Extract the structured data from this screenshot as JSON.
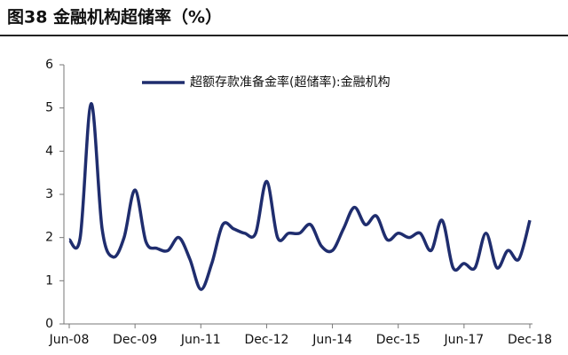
{
  "chart_data": {
    "type": "line",
    "title": "图38 金融机构超储率（%）",
    "categories": [
      "Jun-08",
      null,
      null,
      null,
      null,
      null,
      "Dec-09",
      null,
      null,
      null,
      null,
      null,
      "Jun-11",
      null,
      null,
      null,
      null,
      null,
      "Dec-12",
      null,
      null,
      null,
      null,
      null,
      "Jun-14",
      null,
      null,
      null,
      null,
      null,
      "Dec-15",
      null,
      null,
      null,
      null,
      null,
      "Jun-17",
      null,
      null,
      null,
      null,
      null,
      "Dec-18"
    ],
    "series": [
      {
        "name": "超额存款准备金率(超储率):金融机构",
        "color": "#1f2d6e",
        "values": [
          1.95,
          2.0,
          5.1,
          2.2,
          1.55,
          2.0,
          3.1,
          1.9,
          1.75,
          1.7,
          2.0,
          1.5,
          0.8,
          1.4,
          2.3,
          2.2,
          2.1,
          2.1,
          3.3,
          2.0,
          2.1,
          2.1,
          2.3,
          1.8,
          1.7,
          2.2,
          2.7,
          2.3,
          2.5,
          1.95,
          2.1,
          2.0,
          2.1,
          1.7,
          2.4,
          1.3,
          1.4,
          1.3,
          2.1,
          1.3,
          1.7,
          1.5,
          2.4
        ]
      }
    ],
    "ylim": [
      0,
      6
    ],
    "yticks": [
      0,
      1,
      2,
      3,
      4,
      5,
      6
    ]
  }
}
